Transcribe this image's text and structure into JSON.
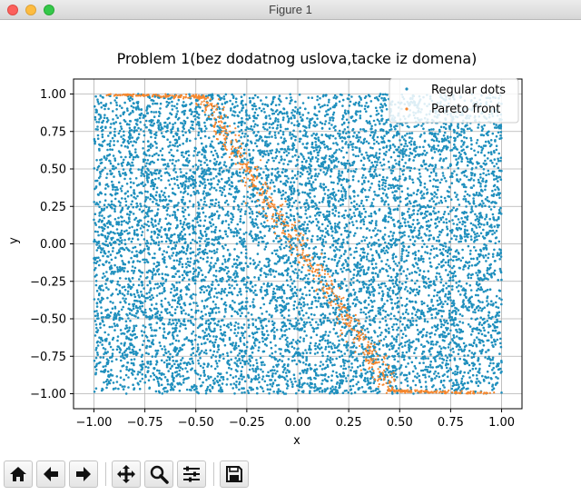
{
  "window": {
    "title": "Figure 1"
  },
  "toolbar": {
    "buttons": [
      {
        "icon": "home-icon",
        "tooltip": "Home"
      },
      {
        "icon": "back-icon",
        "tooltip": "Back"
      },
      {
        "icon": "forward-icon",
        "tooltip": "Forward"
      },
      {
        "icon": "pan-icon",
        "tooltip": "Pan"
      },
      {
        "icon": "zoom-icon",
        "tooltip": "Zoom"
      },
      {
        "icon": "configure-subplots-icon",
        "tooltip": "Configure subplots"
      },
      {
        "icon": "save-icon",
        "tooltip": "Save"
      }
    ]
  },
  "chart_data": {
    "type": "scatter",
    "title": "Problem 1(bez dodatnog uslova,tacke iz domena)",
    "xlabel": "x",
    "ylabel": "y",
    "xlim": [
      -1.1,
      1.1
    ],
    "ylim": [
      -1.1,
      1.1
    ],
    "xticks": [
      "−1.00",
      "−0.75",
      "−0.50",
      "−0.25",
      "0.00",
      "0.25",
      "0.50",
      "0.75",
      "1.00"
    ],
    "xtick_values": [
      -1.0,
      -0.75,
      -0.5,
      -0.25,
      0.0,
      0.25,
      0.5,
      0.75,
      1.0
    ],
    "yticks": [
      "1.00",
      "0.75",
      "0.50",
      "0.25",
      "0.00",
      "−0.25",
      "−0.50",
      "−0.75",
      "−1.00"
    ],
    "ytick_values": [
      1.0,
      0.75,
      0.5,
      0.25,
      0.0,
      -0.25,
      -0.5,
      -0.75,
      -1.0
    ],
    "grid": true,
    "legend_position": "top-right",
    "series": [
      {
        "name": "Regular dots",
        "color": "#1f8fbd",
        "domain": {
          "x": [
            -1.0,
            1.0
          ],
          "y": [
            -1.0,
            1.0
          ]
        },
        "distribution": "uniform",
        "approx_count": 9000
      },
      {
        "name": "Pareto front",
        "color": "#f5872e",
        "curve": [
          {
            "x": -0.95,
            "y": 1.0
          },
          {
            "x": -0.45,
            "y": 0.98
          },
          {
            "x": -0.35,
            "y": 0.72
          },
          {
            "x": -0.2,
            "y": 0.4
          },
          {
            "x": 0.0,
            "y": 0.0
          },
          {
            "x": 0.2,
            "y": -0.4
          },
          {
            "x": 0.35,
            "y": -0.72
          },
          {
            "x": 0.45,
            "y": -0.98
          },
          {
            "x": 0.95,
            "y": -1.0
          }
        ],
        "approx_count": 800
      }
    ]
  }
}
